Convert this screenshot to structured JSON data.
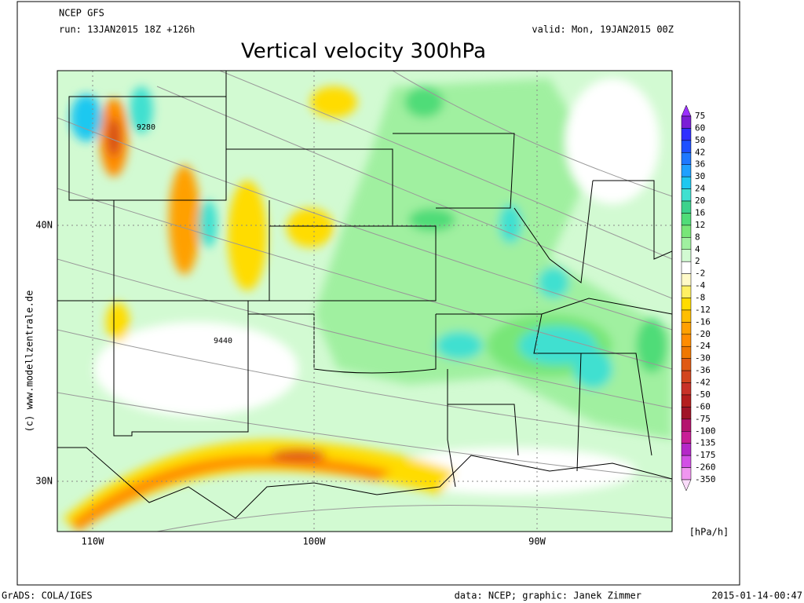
{
  "header": {
    "model": "NCEP GFS",
    "run": "run: 13JAN2015 18Z +126h",
    "valid": "valid: Mon, 19JAN2015 00Z",
    "title": "Vertical velocity 300hPa"
  },
  "map": {
    "lat_labels": [
      "40N",
      "30N"
    ],
    "lon_labels": [
      "110W",
      "100W",
      "90W"
    ],
    "contour_labels": [
      "9280",
      "9440"
    ],
    "copyright": "(c) www.modellzentrale.de"
  },
  "legend": {
    "levels": [
      75,
      60,
      50,
      42,
      36,
      30,
      24,
      20,
      16,
      12,
      8,
      4,
      2,
      -2,
      -4,
      -8,
      -12,
      -16,
      -20,
      -24,
      -30,
      -36,
      -42,
      -50,
      -60,
      -75,
      -100,
      -135,
      -175,
      -260,
      -350
    ],
    "colors": [
      "#9b30ff",
      "#7b1fd6",
      "#3030ff",
      "#1e50ff",
      "#1e78ff",
      "#1ea0ff",
      "#1ec8f0",
      "#40e0d0",
      "#3cd28c",
      "#50dc78",
      "#78e678",
      "#a0f0a0",
      "#d2fad2",
      "#ffffff",
      "#fffac8",
      "#fff064",
      "#ffdc00",
      "#ffbe00",
      "#ffa000",
      "#ff8c00",
      "#f07800",
      "#e05a14",
      "#d2461e",
      "#c83228",
      "#b41e1e",
      "#a01428",
      "#b4146e",
      "#c81e96",
      "#b428c8",
      "#d250e6",
      "#f096f0",
      "#fadcfa"
    ],
    "unit": "[hPa/h]"
  },
  "footer": {
    "left": "GrADS: COLA/IGES",
    "center": "data: NCEP; graphic: Janek Zimmer",
    "right": "2015-01-14-00:47"
  }
}
